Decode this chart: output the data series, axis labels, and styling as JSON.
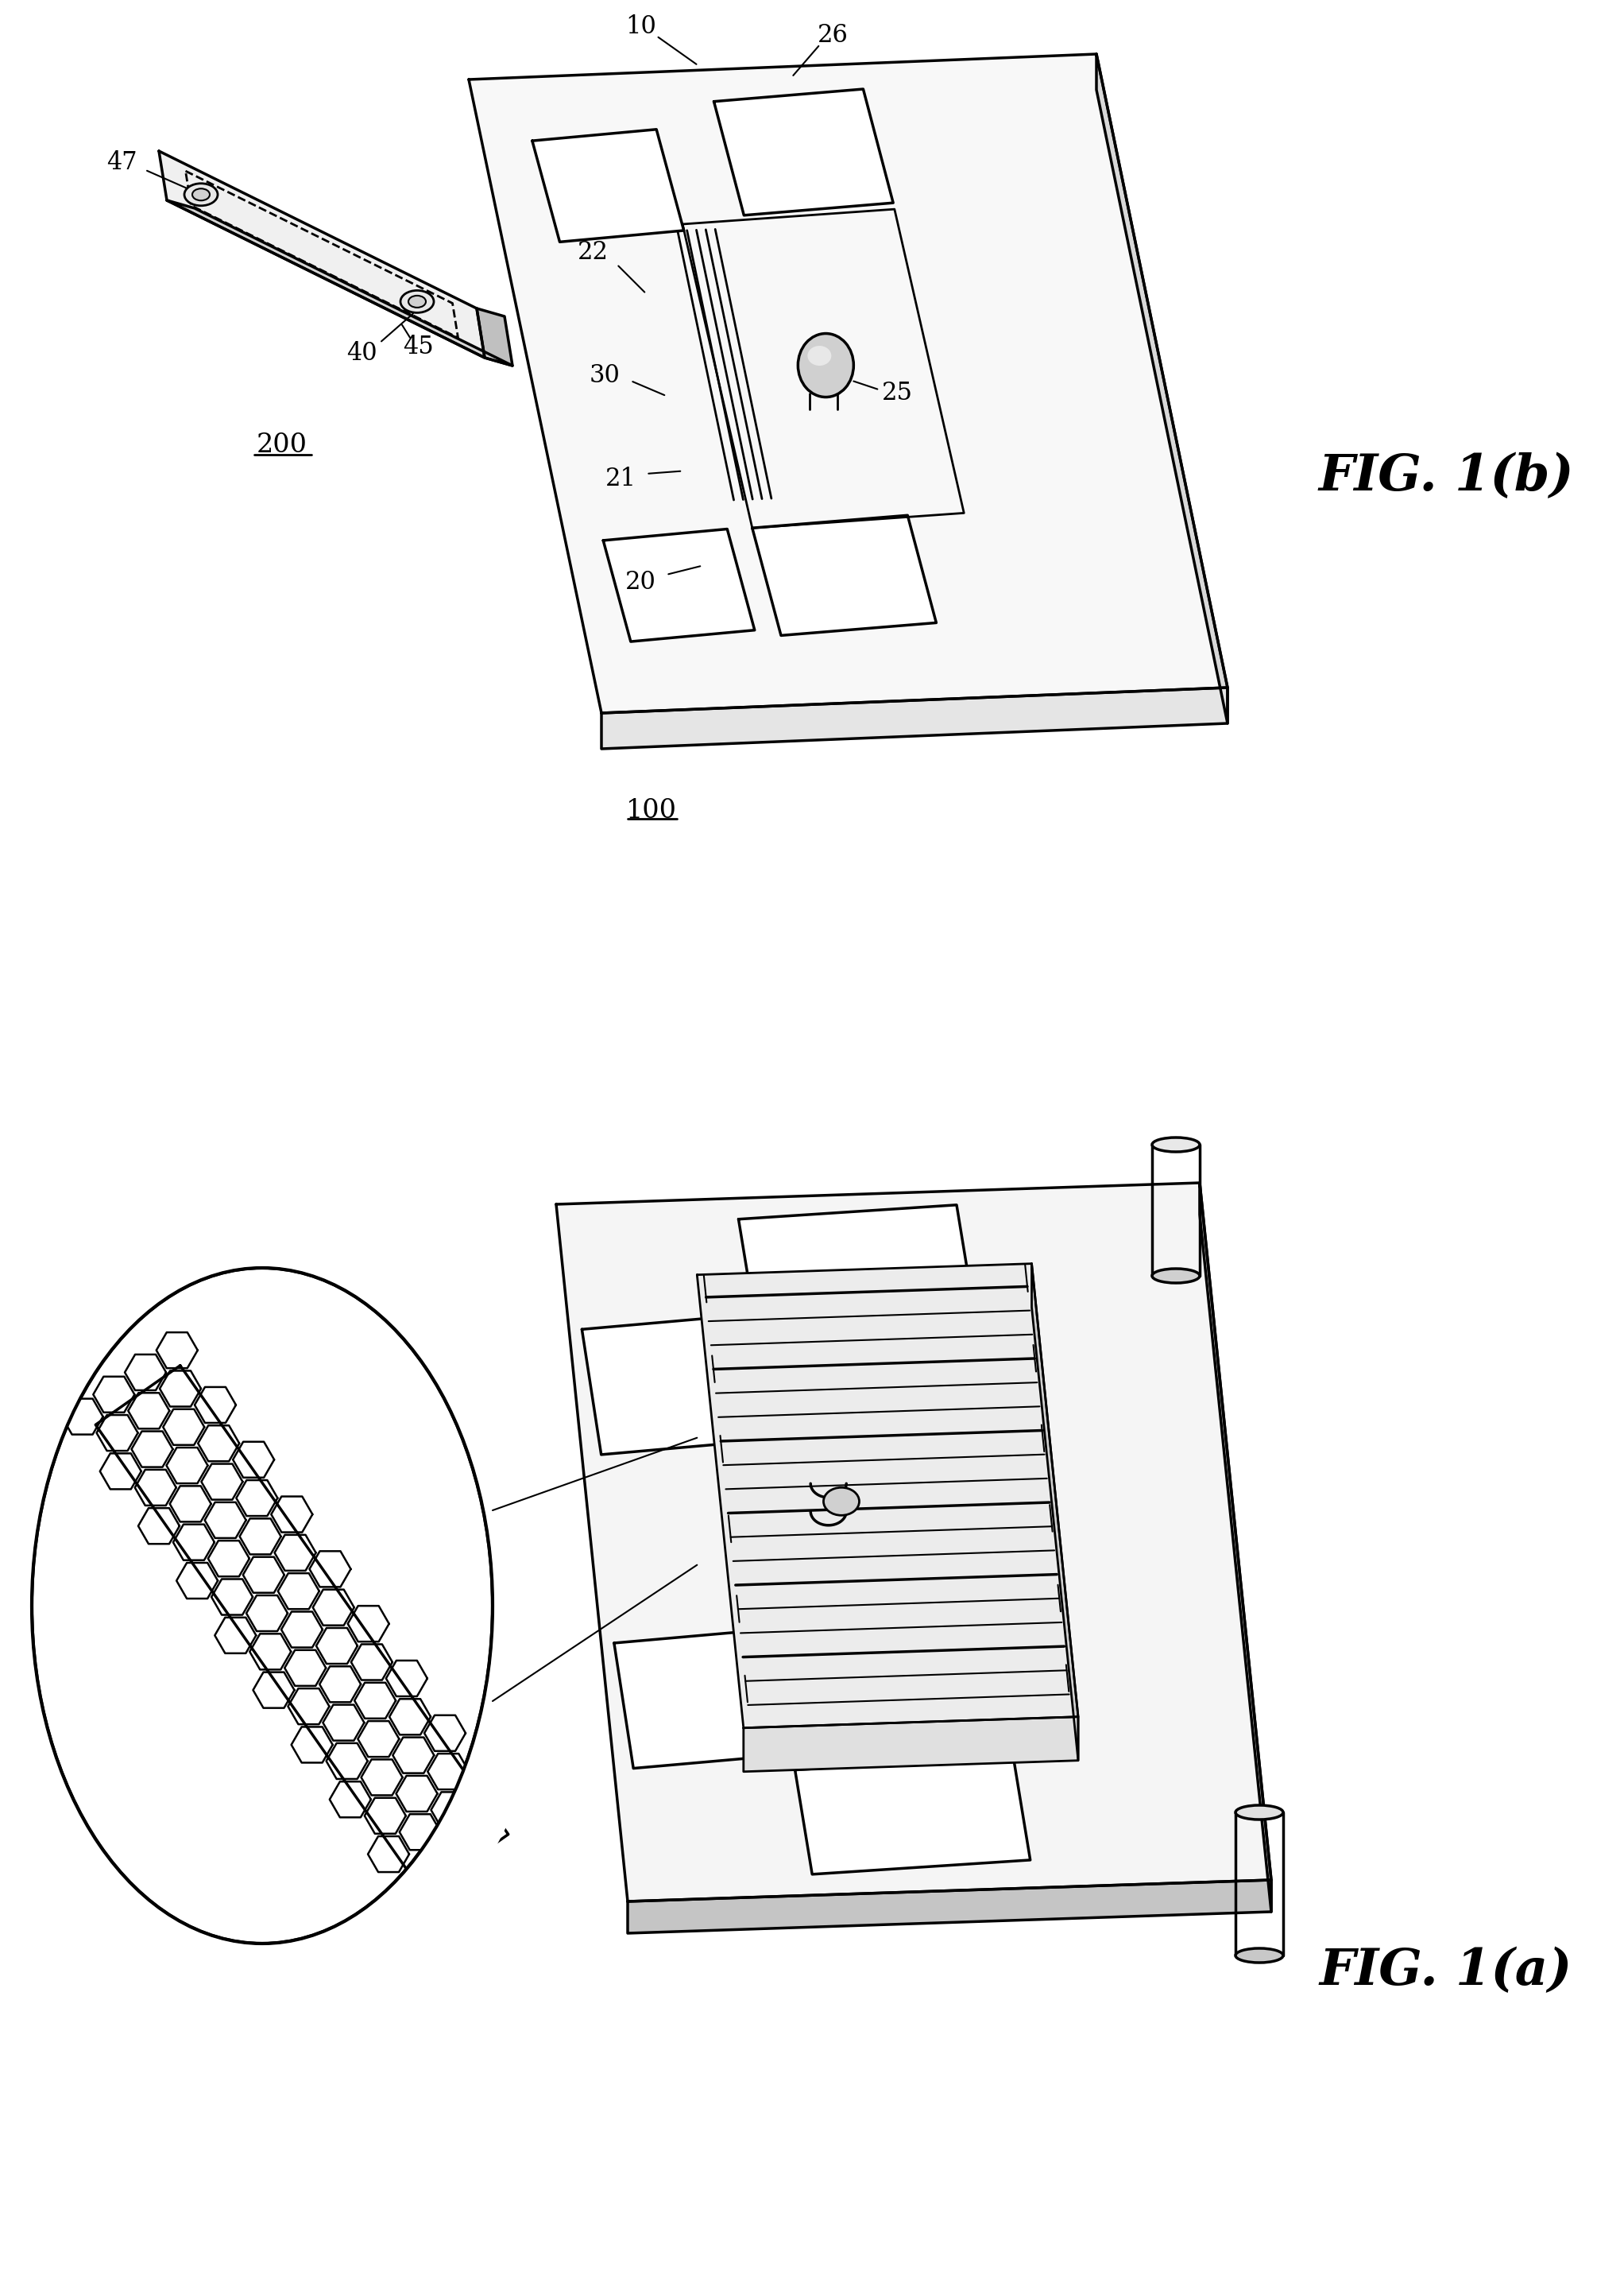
{
  "fig_width": 20.44,
  "fig_height": 28.67,
  "bg_color": "#ffffff",
  "line_color": "#000000",
  "fig_a_label": "FIG. 1(a)",
  "fig_b_label": "FIG. 1(b)",
  "label_100": "100",
  "label_200": "200",
  "label_10": "10",
  "label_20": "20",
  "label_21": "21",
  "label_22": "22",
  "label_25": "25",
  "label_26": "26",
  "label_30": "30",
  "label_40": "40",
  "label_45": "45",
  "label_47": "47"
}
